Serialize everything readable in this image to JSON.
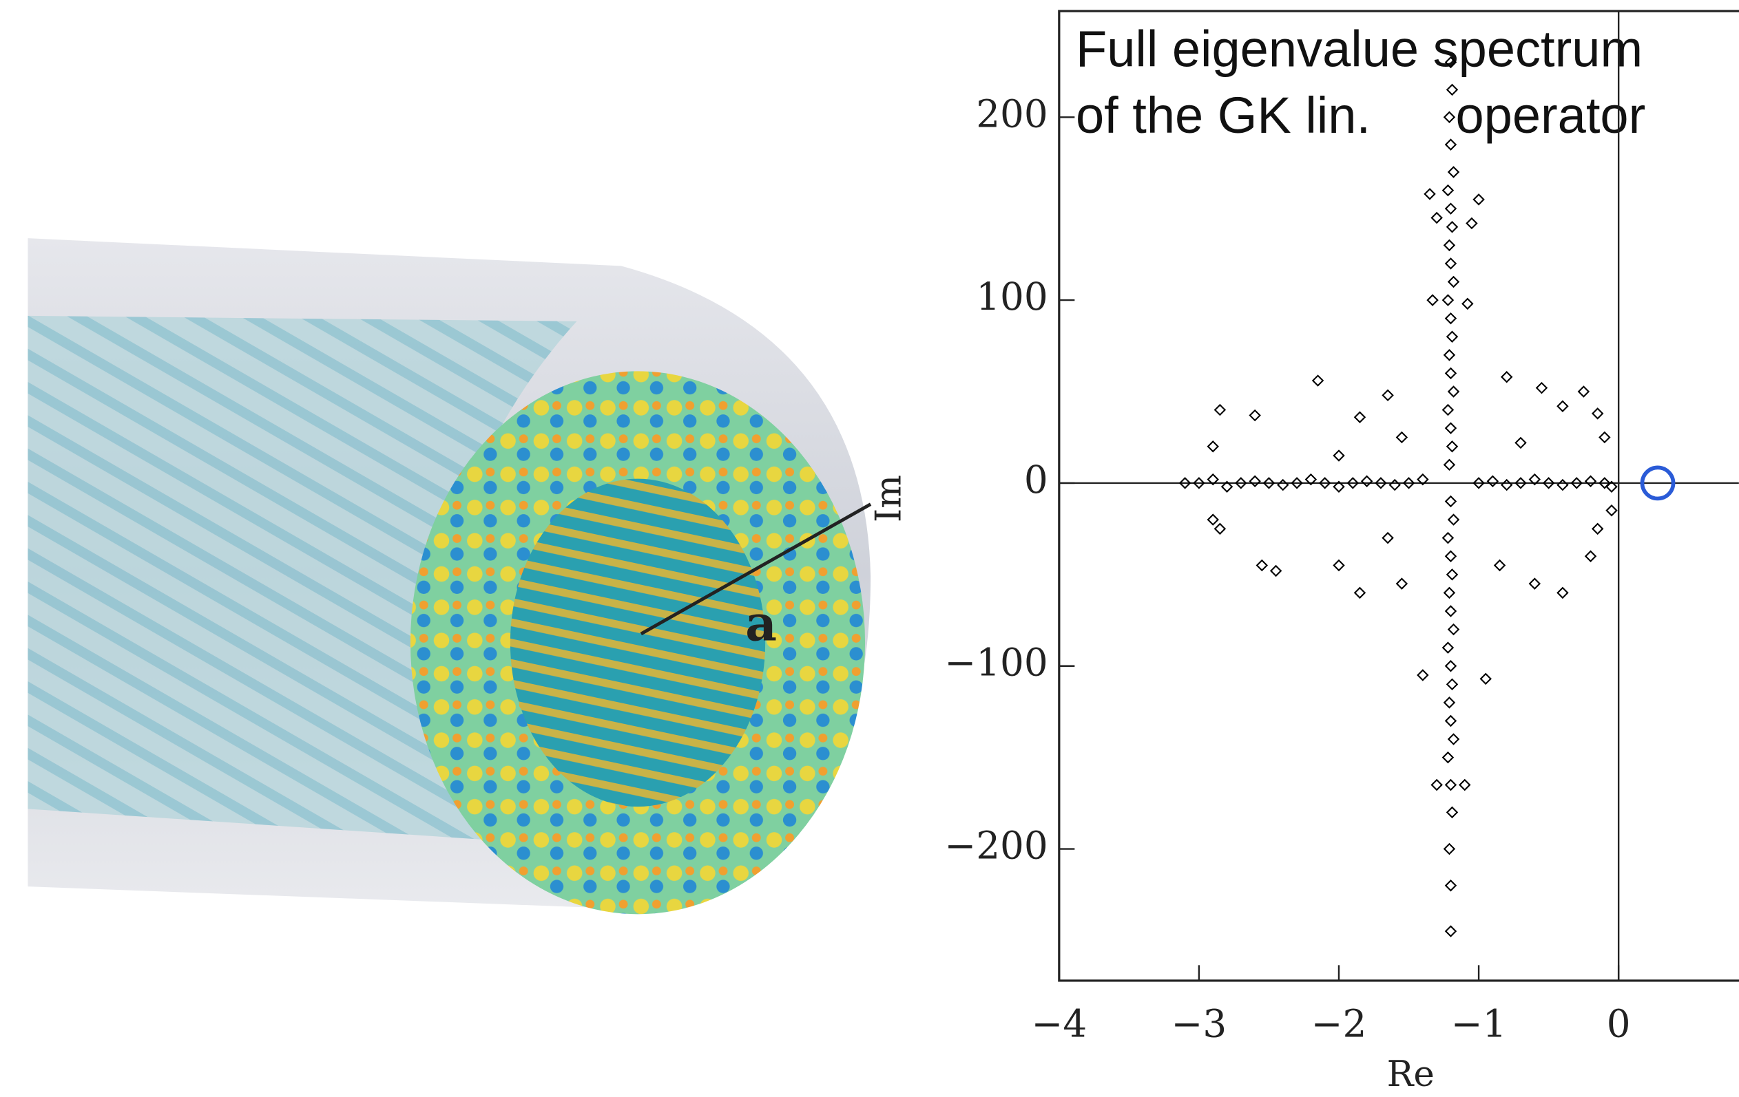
{
  "figure": {
    "label": "a"
  },
  "chart_data": {
    "type": "scatter",
    "title": "Full eigenvalue spectrum",
    "subtitle": "of the GK lin.      operator",
    "x_label": "Re",
    "y_label": "Im",
    "color": "#000000",
    "xlim": [
      -4,
      0.86
    ],
    "ylim": [
      -272,
      258
    ],
    "xticks": [
      {
        "value": -4,
        "label": "−4"
      },
      {
        "value": -3,
        "label": "−3"
      },
      {
        "value": -2,
        "label": "−2"
      },
      {
        "value": -1,
        "label": "−1"
      },
      0
    ],
    "yticks": [
      200,
      100,
      0,
      {
        "value": -100,
        "label": "−100"
      },
      {
        "value": -200,
        "label": "−200"
      }
    ],
    "x": [
      -1.2,
      -1.19,
      -1.21,
      -1.2,
      -1.18,
      -1.22,
      -1.2,
      -1.19,
      -1.21,
      -1.2,
      -1.18,
      -1.22,
      -1.2,
      -1.19,
      -1.21,
      -1.2,
      -1.18,
      -1.22,
      -1.2,
      -1.19,
      -1.21,
      -1.2,
      -1.18,
      -1.22,
      -1.2,
      -1.19,
      -1.21,
      -1.2,
      -1.18,
      -1.22,
      -1.2,
      -1.19,
      -1.21,
      -1.2,
      -1.18,
      -1.22,
      -1.2,
      -1.19,
      -1.21,
      -1.2,
      -1.2,
      -3.1,
      -3.0,
      -2.9,
      -2.8,
      -2.7,
      -2.6,
      -2.5,
      -2.4,
      -2.3,
      -2.2,
      -2.1,
      -2.0,
      -1.9,
      -1.8,
      -1.7,
      -1.6,
      -1.5,
      -1.4,
      -1.0,
      -0.9,
      -0.8,
      -0.7,
      -0.6,
      -0.5,
      -0.4,
      -0.3,
      -0.2,
      -0.1,
      -0.05,
      -1.35,
      -1.0,
      -1.3,
      -1.05,
      -1.33,
      -1.08,
      -2.15,
      -1.65,
      -0.8,
      -0.55,
      -0.25,
      -2.6,
      -2.85,
      -1.85,
      -0.4,
      -0.15,
      -0.1,
      -2.0,
      -1.55,
      -0.7,
      -2.85,
      -2.9,
      -2.55,
      -2.45,
      -2.0,
      -1.85,
      -1.65,
      -1.55,
      -0.85,
      -0.6,
      -0.4,
      -0.2,
      -0.15,
      -1.4,
      -0.95,
      -1.3,
      -1.1,
      -0.05,
      -2.9
    ],
    "values": [
      230,
      215,
      200,
      185,
      170,
      160,
      150,
      140,
      130,
      120,
      110,
      100,
      90,
      80,
      70,
      60,
      50,
      40,
      30,
      20,
      10,
      -10,
      -20,
      -30,
      -40,
      -50,
      -60,
      -70,
      -80,
      -90,
      -100,
      -110,
      -120,
      -130,
      -140,
      -150,
      -165,
      -180,
      -200,
      -220,
      -245,
      0,
      0,
      2,
      -2,
      0,
      1,
      0,
      -1,
      0,
      2,
      0,
      -2,
      0,
      1,
      0,
      -1,
      0,
      2,
      0,
      1,
      -1,
      0,
      2,
      0,
      -1,
      0,
      1,
      0,
      -2,
      158,
      155,
      145,
      142,
      100,
      98,
      56,
      48,
      58,
      52,
      50,
      37,
      40,
      36,
      42,
      38,
      25,
      15,
      25,
      22,
      -25,
      -20,
      -45,
      -48,
      -45,
      -60,
      -30,
      -55,
      -45,
      -55,
      -60,
      -40,
      -25,
      -105,
      -107,
      -165,
      -165,
      -15,
      20
    ],
    "highlight": {
      "x": 0.28,
      "y": 0,
      "color": "#2a5bd7"
    }
  }
}
